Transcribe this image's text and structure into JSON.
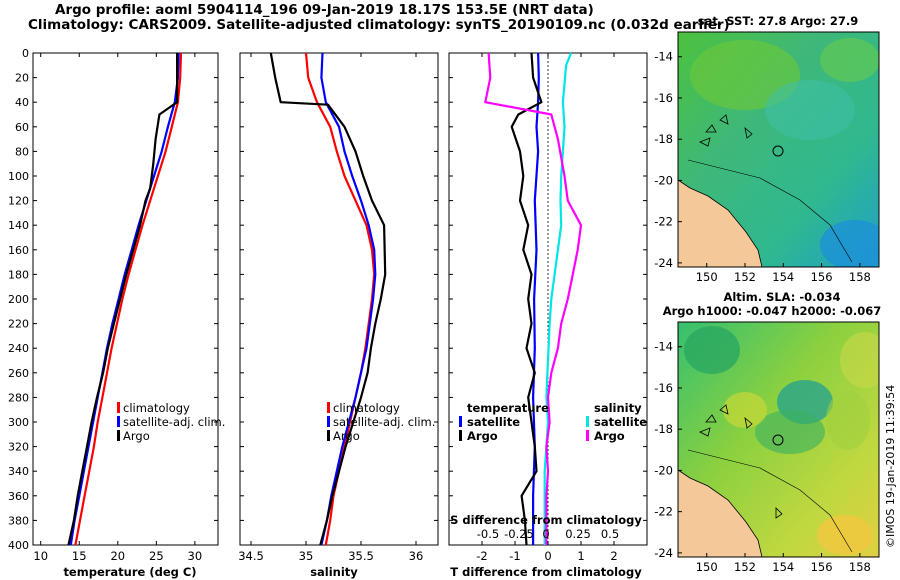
{
  "header": {
    "line1": "Argo profile: aoml 5904114_196 09-Jan-2019 18.17S 153.5E (NRT data)",
    "line2": "Climatology: CARS2009. Satellite-adjusted climatology: synTS_20190109.nc (0.032d earlier)"
  },
  "credit": "©IMOS 19-Jan-2019 11:39:54",
  "colors": {
    "climatology": "#ff0000",
    "satellite": "#0000ff",
    "argo": "#000000",
    "sat_salinity": "#00e5e5",
    "argo_salinity": "#ff00ff",
    "land": "#f5c89a"
  },
  "chart_data": [
    {
      "id": "temperature",
      "type": "line",
      "xlabel": "temperature (deg C)",
      "ylabel": "",
      "xlim": [
        9,
        33
      ],
      "ylim": [
        400,
        0
      ],
      "xticks": [
        10,
        15,
        20,
        25,
        30
      ],
      "yticks": [
        0,
        20,
        40,
        60,
        80,
        100,
        120,
        140,
        160,
        180,
        200,
        220,
        240,
        260,
        280,
        300,
        320,
        340,
        360,
        380,
        400
      ],
      "legend": [
        "climatology",
        "satellite-adj. clim.",
        "Argo"
      ],
      "series": [
        {
          "name": "climatology",
          "color": "red",
          "points": [
            [
              28.2,
              0
            ],
            [
              28.1,
              20
            ],
            [
              27.8,
              40
            ],
            [
              27.0,
              60
            ],
            [
              26.2,
              80
            ],
            [
              25.2,
              100
            ],
            [
              24.2,
              120
            ],
            [
              23.2,
              140
            ],
            [
              22.3,
              160
            ],
            [
              21.4,
              180
            ],
            [
              20.6,
              200
            ],
            [
              19.9,
              220
            ],
            [
              19.2,
              240
            ],
            [
              18.6,
              260
            ],
            [
              18.0,
              280
            ],
            [
              17.4,
              300
            ],
            [
              16.9,
              320
            ],
            [
              16.3,
              340
            ],
            [
              15.7,
              360
            ],
            [
              15.1,
              380
            ],
            [
              14.5,
              400
            ]
          ]
        },
        {
          "name": "satellite-adj. clim.",
          "color": "blue",
          "points": [
            [
              27.9,
              0
            ],
            [
              27.8,
              20
            ],
            [
              27.4,
              40
            ],
            [
              26.5,
              60
            ],
            [
              25.7,
              80
            ],
            [
              24.7,
              100
            ],
            [
              23.7,
              120
            ],
            [
              22.7,
              140
            ],
            [
              21.8,
              160
            ],
            [
              20.9,
              180
            ],
            [
              20.1,
              200
            ],
            [
              19.3,
              220
            ],
            [
              18.6,
              240
            ],
            [
              18.0,
              260
            ],
            [
              17.4,
              280
            ],
            [
              16.8,
              300
            ],
            [
              16.2,
              320
            ],
            [
              15.6,
              340
            ],
            [
              15.0,
              360
            ],
            [
              14.4,
              380
            ],
            [
              13.9,
              400
            ]
          ]
        },
        {
          "name": "Argo",
          "color": "black",
          "points": [
            [
              27.7,
              0
            ],
            [
              27.7,
              20
            ],
            [
              27.7,
              40
            ],
            [
              25.4,
              50
            ],
            [
              24.9,
              70
            ],
            [
              24.6,
              90
            ],
            [
              24.2,
              110
            ],
            [
              23.6,
              120
            ],
            [
              22.9,
              140
            ],
            [
              22.0,
              160
            ],
            [
              21.1,
              180
            ],
            [
              20.3,
              200
            ],
            [
              19.5,
              220
            ],
            [
              18.7,
              240
            ],
            [
              18.1,
              260
            ],
            [
              17.3,
              280
            ],
            [
              16.6,
              300
            ],
            [
              16.0,
              320
            ],
            [
              15.4,
              340
            ],
            [
              14.8,
              360
            ],
            [
              14.3,
              380
            ],
            [
              13.6,
              400
            ]
          ]
        }
      ]
    },
    {
      "id": "salinity",
      "type": "line",
      "xlabel": "salinity",
      "xlim": [
        34.4,
        36.2
      ],
      "ylim": [
        400,
        0
      ],
      "xticks": [
        34.5,
        35,
        35.5,
        36
      ],
      "legend": [
        "climatology",
        "satellite-adj. clim.",
        "Argo"
      ],
      "series": [
        {
          "name": "climatology",
          "color": "red",
          "points": [
            [
              35.0,
              0
            ],
            [
              35.02,
              20
            ],
            [
              35.1,
              40
            ],
            [
              35.22,
              60
            ],
            [
              35.28,
              80
            ],
            [
              35.35,
              100
            ],
            [
              35.45,
              120
            ],
            [
              35.55,
              140
            ],
            [
              35.6,
              160
            ],
            [
              35.62,
              180
            ],
            [
              35.6,
              200
            ],
            [
              35.57,
              220
            ],
            [
              35.54,
              240
            ],
            [
              35.5,
              260
            ],
            [
              35.45,
              280
            ],
            [
              35.4,
              300
            ],
            [
              35.35,
              320
            ],
            [
              35.3,
              340
            ],
            [
              35.25,
              360
            ],
            [
              35.22,
              380
            ],
            [
              35.18,
              400
            ]
          ]
        },
        {
          "name": "satellite-adj. clim.",
          "color": "blue",
          "points": [
            [
              35.15,
              0
            ],
            [
              35.14,
              20
            ],
            [
              35.18,
              40
            ],
            [
              35.3,
              60
            ],
            [
              35.35,
              80
            ],
            [
              35.42,
              100
            ],
            [
              35.5,
              120
            ],
            [
              35.57,
              140
            ],
            [
              35.62,
              160
            ],
            [
              35.63,
              180
            ],
            [
              35.61,
              200
            ],
            [
              35.58,
              220
            ],
            [
              35.55,
              240
            ],
            [
              35.5,
              260
            ],
            [
              35.45,
              280
            ],
            [
              35.39,
              300
            ],
            [
              35.33,
              320
            ],
            [
              35.28,
              340
            ],
            [
              35.23,
              360
            ],
            [
              35.19,
              380
            ],
            [
              35.14,
              400
            ]
          ]
        },
        {
          "name": "Argo",
          "color": "black",
          "points": [
            [
              34.68,
              0
            ],
            [
              34.72,
              20
            ],
            [
              34.77,
              40
            ],
            [
              35.2,
              42
            ],
            [
              35.35,
              60
            ],
            [
              35.45,
              80
            ],
            [
              35.52,
              100
            ],
            [
              35.6,
              120
            ],
            [
              35.71,
              140
            ],
            [
              35.72,
              180
            ],
            [
              35.68,
              200
            ],
            [
              35.63,
              220
            ],
            [
              35.59,
              240
            ],
            [
              35.56,
              260
            ],
            [
              35.5,
              280
            ],
            [
              35.43,
              300
            ],
            [
              35.36,
              320
            ],
            [
              35.3,
              340
            ],
            [
              35.24,
              360
            ],
            [
              35.19,
              380
            ],
            [
              35.13,
              400
            ]
          ]
        }
      ]
    },
    {
      "id": "difference",
      "type": "line",
      "xlabel": "T difference from climatology",
      "xlabel_top": "S difference from climatology",
      "xlim": [
        -3,
        3
      ],
      "ylim": [
        400,
        0
      ],
      "xticks": [
        -2,
        -1,
        0,
        1,
        2
      ],
      "xticks_top": [
        "-0.5",
        "-0.25",
        "0",
        "0.25",
        "0.5"
      ],
      "legend_temperature_title": "temperature",
      "legend_salinity_title": "salinity",
      "legend": [
        "satellite",
        "Argo",
        "satellite",
        "Argo"
      ],
      "series": [
        {
          "name": "temperature satellite",
          "color": "blue",
          "points": [
            [
              -0.3,
              0
            ],
            [
              -0.28,
              20
            ],
            [
              -0.3,
              40
            ],
            [
              -0.35,
              60
            ],
            [
              -0.3,
              80
            ],
            [
              -0.4,
              120
            ],
            [
              -0.35,
              160
            ],
            [
              -0.42,
              200
            ],
            [
              -0.4,
              240
            ],
            [
              -0.45,
              280
            ],
            [
              -0.4,
              320
            ],
            [
              -0.45,
              360
            ],
            [
              -0.45,
              400
            ]
          ]
        },
        {
          "name": "temperature Argo",
          "color": "black",
          "points": [
            [
              -0.5,
              0
            ],
            [
              -0.45,
              20
            ],
            [
              -0.2,
              40
            ],
            [
              -0.9,
              50
            ],
            [
              -1.1,
              60
            ],
            [
              -0.85,
              80
            ],
            [
              -0.75,
              100
            ],
            [
              -0.85,
              120
            ],
            [
              -0.6,
              140
            ],
            [
              -0.75,
              160
            ],
            [
              -0.5,
              180
            ],
            [
              -0.6,
              200
            ],
            [
              -0.5,
              220
            ],
            [
              -0.65,
              240
            ],
            [
              -0.4,
              260
            ],
            [
              -0.6,
              280
            ],
            [
              -0.5,
              300
            ],
            [
              -0.4,
              320
            ],
            [
              -0.35,
              340
            ],
            [
              -0.8,
              360
            ],
            [
              -0.7,
              380
            ],
            [
              -0.65,
              400
            ]
          ]
        },
        {
          "name": "salinity satellite",
          "color": "cyan",
          "points": [
            [
              0.7,
              0
            ],
            [
              0.55,
              10
            ],
            [
              0.45,
              40
            ],
            [
              0.5,
              60
            ],
            [
              0.45,
              80
            ],
            [
              0.4,
              100
            ],
            [
              0.38,
              120
            ],
            [
              0.4,
              140
            ],
            [
              0.3,
              160
            ],
            [
              0.2,
              180
            ],
            [
              0.1,
              200
            ],
            [
              0.05,
              220
            ],
            [
              0.0,
              250
            ],
            [
              -0.05,
              280
            ],
            [
              0.0,
              300
            ],
            [
              -0.1,
              340
            ],
            [
              -0.1,
              380
            ],
            [
              -0.1,
              400
            ]
          ]
        },
        {
          "name": "salinity Argo",
          "color": "magenta",
          "points": [
            [
              -1.8,
              0
            ],
            [
              -1.75,
              20
            ],
            [
              -1.9,
              40
            ],
            [
              0.1,
              50
            ],
            [
              0.3,
              70
            ],
            [
              0.5,
              100
            ],
            [
              0.6,
              120
            ],
            [
              1.0,
              140
            ],
            [
              0.9,
              160
            ],
            [
              0.75,
              180
            ],
            [
              0.6,
              200
            ],
            [
              0.4,
              220
            ],
            [
              0.3,
              240
            ],
            [
              0.1,
              260
            ],
            [
              0.0,
              280
            ],
            [
              0.05,
              300
            ],
            [
              -0.05,
              320
            ],
            [
              0.0,
              340
            ],
            [
              -0.05,
              360
            ],
            [
              -0.05,
              380
            ],
            [
              -0.05,
              400
            ]
          ]
        }
      ]
    },
    {
      "id": "sst-map",
      "type": "heatmap",
      "title": "sat. SST: 27.8 Argo: 27.9",
      "xlim": [
        148.5,
        159
      ],
      "ylim": [
        -24.2,
        -12.8
      ],
      "xticks": [
        150,
        152,
        154,
        156,
        158
      ],
      "yticks": [
        -14,
        -16,
        -18,
        -20,
        -22,
        -24
      ],
      "marker": {
        "lon": 153.5,
        "lat": -18.17
      }
    },
    {
      "id": "sla-map",
      "type": "heatmap",
      "title_line1": "Altim. SLA: -0.034",
      "title_line2": "Argo h1000: -0.047 h2000: -0.067",
      "xlim": [
        148.5,
        159
      ],
      "ylim": [
        -24.2,
        -12.8
      ],
      "xticks": [
        150,
        152,
        154,
        156,
        158
      ],
      "yticks": [
        -14,
        -16,
        -18,
        -20,
        -22,
        -24
      ],
      "marker": {
        "lon": 153.5,
        "lat": -18.17
      }
    }
  ]
}
